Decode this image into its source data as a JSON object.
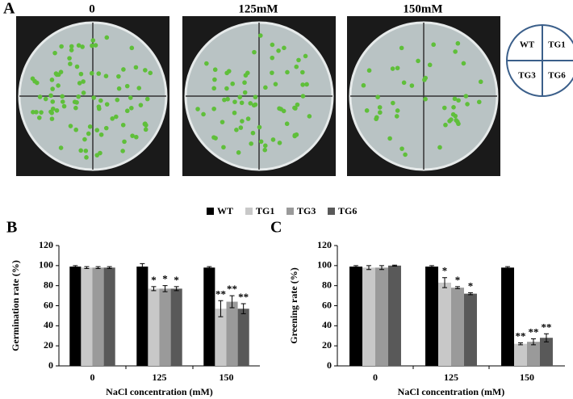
{
  "panel_a": {
    "label": "A",
    "plate_titles": [
      "0",
      "125mM",
      "150mM"
    ],
    "key": [
      "WT",
      "TG1",
      "TG3",
      "TG6"
    ]
  },
  "chart_data": [
    {
      "type": "bar",
      "panel": "B",
      "y_label": "Germination rate (%)",
      "x_label": "NaCl concentration (mM)",
      "categories": [
        "0",
        "125",
        "150"
      ],
      "ylim": [
        0,
        120
      ],
      "yticks": [
        0,
        20,
        40,
        60,
        80,
        100,
        120
      ],
      "series": [
        {
          "name": "WT",
          "color": "#000000",
          "values": [
            99,
            99,
            98
          ],
          "errors": [
            1,
            3,
            1
          ]
        },
        {
          "name": "TG1",
          "color": "#c8c8c8",
          "values": [
            98,
            77,
            57
          ],
          "errors": [
            1,
            2,
            8
          ],
          "annotations": [
            null,
            "*",
            "**"
          ]
        },
        {
          "name": "TG3",
          "color": "#9a9a9a",
          "values": [
            98,
            77,
            64
          ],
          "errors": [
            1,
            3,
            6
          ],
          "annotations": [
            null,
            "*",
            "**"
          ]
        },
        {
          "name": "TG6",
          "color": "#595959",
          "values": [
            98,
            77,
            57
          ],
          "errors": [
            1,
            2,
            5
          ],
          "annotations": [
            null,
            "*",
            "**"
          ]
        }
      ]
    },
    {
      "type": "bar",
      "panel": "C",
      "y_label": "Greening  rate (%)",
      "x_label": "NaCl concentration (mM)",
      "categories": [
        "0",
        "125",
        "150"
      ],
      "ylim": [
        0,
        120
      ],
      "yticks": [
        0,
        20,
        40,
        60,
        80,
        100,
        120
      ],
      "series": [
        {
          "color": "#000000",
          "values": [
            99,
            99,
            98
          ],
          "errors": [
            1,
            1,
            1
          ]
        },
        {
          "color": "#c8c8c8",
          "values": [
            98,
            83,
            22
          ],
          "errors": [
            2,
            5,
            1
          ],
          "annotations": [
            null,
            "*",
            "**"
          ]
        },
        {
          "color": "#9a9a9a",
          "values": [
            98,
            78,
            24
          ],
          "errors": [
            2,
            1,
            3
          ],
          "annotations": [
            null,
            "*",
            "**"
          ]
        },
        {
          "color": "#595959",
          "values": [
            100,
            72,
            28
          ],
          "errors": [
            0.5,
            1,
            4
          ],
          "annotations": [
            null,
            "*",
            "**"
          ]
        }
      ]
    }
  ]
}
